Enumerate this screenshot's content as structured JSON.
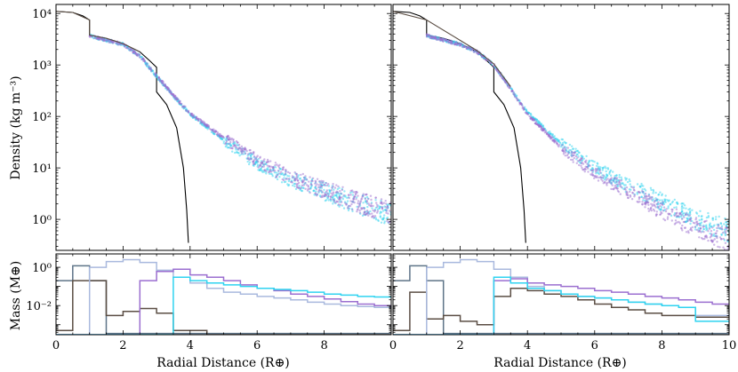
{
  "figure": {
    "ylabel_top": "Density (kg m⁻³)",
    "ylabel_bottom": "Mass (M⊕)",
    "xlabel": "Radial Distance (R⊕)"
  },
  "colors": {
    "reference": "#000000",
    "cyan": "#2fd3f0",
    "purple": "#9b6fd0",
    "lightblue": "#a9b9de",
    "brown": "#5b4e44",
    "slate": "#5e7488"
  },
  "chart_data": [
    {
      "type": "line",
      "panel": "top-left",
      "xlim": [
        0,
        10
      ],
      "ylim": [
        0.25,
        15000
      ],
      "yscale": "log",
      "ylabel": "Density (kg m⁻³)",
      "yticks": [
        1,
        10,
        100,
        1000,
        10000
      ],
      "ytick_labels": [
        "10⁰",
        "10¹",
        "10²",
        "10³",
        "10⁴"
      ],
      "series": [
        {
          "color": "reference",
          "style": "line",
          "x": [
            0,
            0.5,
            0.8,
            1.0,
            1.0,
            1.5,
            2.0,
            2.5,
            2.8,
            3.0,
            3.0,
            3.3,
            3.6,
            3.8,
            3.9,
            3.95
          ],
          "y": [
            11000,
            10500,
            9000,
            7500,
            3800,
            3300,
            2600,
            1800,
            1200,
            900,
            300,
            170,
            60,
            10,
            1.5,
            0.35
          ]
        },
        {
          "color": "cyan",
          "style": "scatter",
          "x": [
            1.0,
            2.0,
            2.5,
            3.0,
            3.5,
            4.0,
            5.0,
            6.0,
            7.0,
            8.0,
            9.0,
            10.0
          ],
          "y": [
            3700,
            2500,
            1500,
            600,
            250,
            110,
            35,
            12,
            6,
            3.5,
            2.0,
            1.2
          ]
        },
        {
          "color": "purple",
          "style": "scatter",
          "x": [
            1.0,
            2.0,
            2.5,
            3.0,
            3.5,
            4.0,
            5.0,
            6.0,
            7.0,
            8.0,
            9.0,
            10.0
          ],
          "y": [
            3700,
            2500,
            1500,
            620,
            260,
            115,
            38,
            14,
            6.5,
            3.7,
            2.2,
            1.3
          ]
        },
        {
          "color": "brown",
          "style": "line",
          "x": [
            0,
            0.5,
            1.0,
            1.0,
            1.5,
            2.0,
            2.5
          ],
          "y": [
            11000,
            10500,
            7500,
            3800,
            3300,
            2600,
            1800
          ]
        }
      ]
    },
    {
      "type": "line",
      "panel": "top-right",
      "xlim": [
        0,
        10
      ],
      "ylim": [
        0.25,
        15000
      ],
      "yscale": "log",
      "series": [
        {
          "color": "reference",
          "style": "line",
          "x": [
            0,
            0.5,
            0.8,
            1.0,
            1.0,
            1.5,
            2.0,
            2.5,
            2.8,
            3.0,
            3.0,
            3.3,
            3.6,
            3.8,
            3.9,
            3.95
          ],
          "y": [
            11000,
            10500,
            9000,
            7500,
            3800,
            3300,
            2600,
            1800,
            1200,
            900,
            300,
            170,
            60,
            10,
            1.5,
            0.35
          ]
        },
        {
          "color": "cyan",
          "style": "scatter",
          "x": [
            1.0,
            2.0,
            2.5,
            3.0,
            3.5,
            4.0,
            5.0,
            6.0,
            7.0,
            8.0,
            9.0,
            10.0
          ],
          "y": [
            3700,
            2500,
            1800,
            1000,
            350,
            120,
            30,
            10,
            4.5,
            2.2,
            1.0,
            0.6
          ]
        },
        {
          "color": "purple",
          "style": "scatter",
          "x": [
            1.0,
            2.0,
            2.5,
            3.0,
            3.5,
            4.0,
            5.0,
            6.0,
            7.0,
            8.0,
            9.0,
            10.0
          ],
          "y": [
            3700,
            2500,
            1800,
            1000,
            340,
            110,
            25,
            8,
            3.5,
            1.5,
            0.7,
            0.4
          ]
        },
        {
          "color": "brown",
          "style": "line",
          "x": [
            0,
            1.0,
            2.0,
            2.5,
            3.0,
            3.5
          ],
          "y": [
            11000,
            7500,
            3000,
            1900,
            1050,
            380
          ]
        }
      ]
    },
    {
      "type": "line",
      "panel": "bottom-left",
      "xlim": [
        0,
        10
      ],
      "ylim": [
        0.0003,
        5
      ],
      "yscale": "log",
      "ylabel": "Mass (M⊕)",
      "xlabel": "Radial Distance (R⊕)",
      "yticks": [
        1,
        0.01
      ],
      "ytick_labels": [
        "10⁰",
        "10⁻²"
      ],
      "xticks": [
        0,
        2,
        4,
        6,
        8
      ],
      "xtick_labels": [
        "0",
        "2",
        "4",
        "6",
        "8"
      ],
      "bin_edges": [
        0,
        0.5,
        1,
        1.5,
        2,
        2.5,
        3,
        3.5,
        4,
        4.5,
        5,
        5.5,
        6,
        6.5,
        7,
        7.5,
        8,
        8.5,
        9,
        9.5,
        10
      ],
      "series": [
        {
          "color": "slate",
          "style": "step",
          "values": [
            0.2,
            1.2,
            0.2,
            0.00035,
            0.00035,
            0.00035,
            0.00035,
            0.00035,
            0.00035,
            0.00035,
            0.00035,
            0.00035,
            0.00035,
            0.00035,
            0.00035,
            0.00035,
            0.00035,
            0.00035,
            0.00035,
            0.00035
          ]
        },
        {
          "color": "brown",
          "style": "step",
          "values": [
            0.0005,
            0.2,
            0.2,
            0.003,
            0.005,
            0.007,
            0.004,
            0.0005,
            0.0005,
            0.0003,
            0.0003,
            0.0003,
            0.0003,
            0.0003,
            0.0003,
            0.0003,
            0.0003,
            0.0003,
            0.0003,
            0.0003
          ]
        },
        {
          "color": "lightblue",
          "style": "step",
          "values": [
            0.0003,
            0.0003,
            1.0,
            2.0,
            2.5,
            1.8,
            0.7,
            0.3,
            0.15,
            0.08,
            0.05,
            0.04,
            0.03,
            0.025,
            0.02,
            0.015,
            0.012,
            0.01,
            0.009,
            0.008
          ]
        },
        {
          "color": "purple",
          "style": "step",
          "values": [
            0.0003,
            0.0003,
            0.0003,
            0.0003,
            0.0003,
            0.2,
            0.6,
            0.8,
            0.4,
            0.3,
            0.2,
            0.12,
            0.08,
            0.06,
            0.04,
            0.03,
            0.022,
            0.016,
            0.012,
            0.01
          ]
        },
        {
          "color": "cyan",
          "style": "step",
          "values": [
            0.0003,
            0.0003,
            0.0003,
            0.0003,
            0.0003,
            0.0003,
            0.0003,
            0.3,
            0.2,
            0.15,
            0.12,
            0.1,
            0.08,
            0.07,
            0.06,
            0.05,
            0.04,
            0.035,
            0.03,
            0.028
          ]
        }
      ]
    },
    {
      "type": "line",
      "panel": "bottom-right",
      "xlim": [
        0,
        10
      ],
      "ylim": [
        0.0003,
        5
      ],
      "yscale": "log",
      "xlabel": "Radial Distance (R⊕)",
      "xticks": [
        0,
        2,
        4,
        6,
        8,
        10
      ],
      "xtick_labels": [
        "0",
        "2",
        "4",
        "6",
        "8",
        "10"
      ],
      "bin_edges": [
        0,
        0.5,
        1,
        1.5,
        2,
        2.5,
        3,
        3.5,
        4,
        4.5,
        5,
        5.5,
        6,
        6.5,
        7,
        7.5,
        8,
        8.5,
        9,
        9.5,
        10
      ],
      "series": [
        {
          "color": "slate",
          "style": "step",
          "values": [
            0.2,
            1.2,
            0.2,
            0.00035,
            0.00035,
            0.00035,
            0.00035,
            0.00035,
            0.00035,
            0.00035,
            0.00035,
            0.00035,
            0.00035,
            0.00035,
            0.00035,
            0.00035,
            0.00035,
            0.00035,
            0.00035,
            0.00035
          ]
        },
        {
          "color": "brown",
          "style": "step",
          "values": [
            0.0005,
            0.05,
            0.002,
            0.003,
            0.0015,
            0.001,
            0.03,
            0.08,
            0.06,
            0.04,
            0.03,
            0.02,
            0.012,
            0.008,
            0.006,
            0.004,
            0.003,
            0.003,
            0.0025,
            0.0025
          ]
        },
        {
          "color": "lightblue",
          "style": "step",
          "values": [
            0.0003,
            0.0003,
            1.0,
            1.8,
            2.5,
            2.0,
            0.8,
            0.3,
            0.1,
            0.06,
            0.04,
            0.03,
            0.025,
            0.02,
            0.015,
            0.012,
            0.01,
            0.008,
            0.003,
            0.003
          ]
        },
        {
          "color": "purple",
          "style": "step",
          "values": [
            0.0003,
            0.0003,
            0.0003,
            0.0003,
            0.0003,
            0.0003,
            0.2,
            0.25,
            0.15,
            0.12,
            0.1,
            0.08,
            0.06,
            0.05,
            0.04,
            0.03,
            0.025,
            0.02,
            0.015,
            0.012
          ]
        },
        {
          "color": "cyan",
          "style": "step",
          "values": [
            0.0003,
            0.0003,
            0.0003,
            0.0003,
            0.0003,
            0.0003,
            0.3,
            0.15,
            0.08,
            0.06,
            0.04,
            0.03,
            0.025,
            0.02,
            0.015,
            0.012,
            0.01,
            0.008,
            0.0015,
            0.0015
          ]
        }
      ]
    }
  ]
}
